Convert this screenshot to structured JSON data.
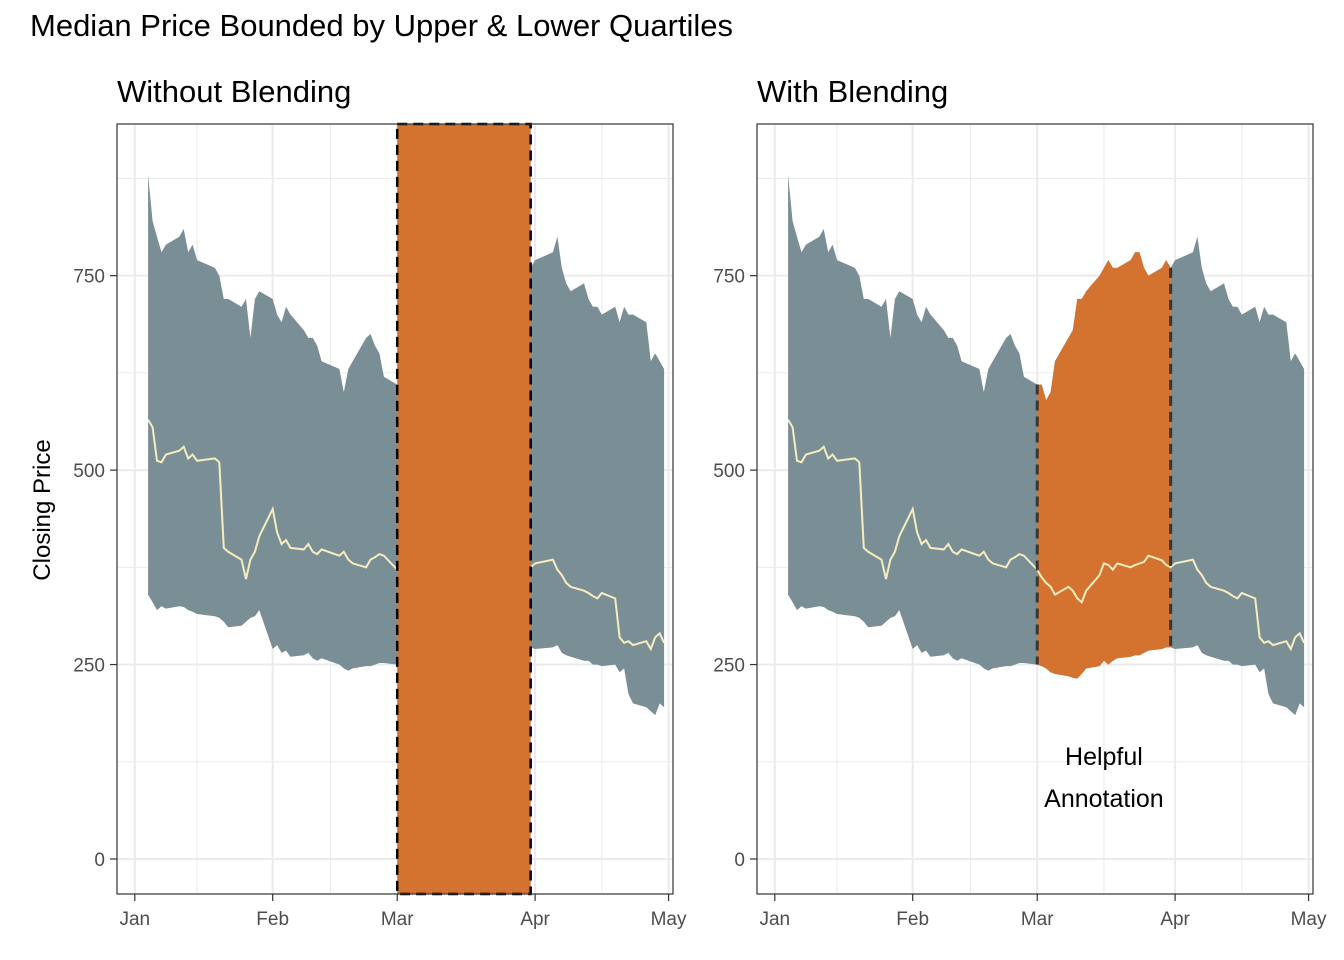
{
  "title": "Median Price Bounded by Upper & Lower Quartiles",
  "colors": {
    "band": "#7a8e95",
    "highlight": "#d4722f",
    "median": "#f7ecc0",
    "grid": "#ebebeb",
    "frame": "#333333"
  },
  "chart_data": [
    {
      "type": "area",
      "title": "Without Blending",
      "ylabel": "Closing Price",
      "xlabel": "",
      "x_ticks": [
        "Jan",
        "Feb",
        "Mar",
        "Apr",
        "May"
      ],
      "y_ticks": [
        "0",
        "250",
        "500",
        "750"
      ],
      "ylim": [
        -45,
        945
      ],
      "xlim": [
        "2020-12-28",
        "2021-05-02"
      ],
      "grid": true,
      "legend": "none",
      "highlight": {
        "x_start": "2021-03-01",
        "x_end": "2021-03-31",
        "style": "opaque rectangle spanning full panel height, dashed borders"
      },
      "annotation": {
        "lines": [
          "Helpful",
          "Annotation"
        ],
        "x": "2021-03-16",
        "y": 90,
        "obscured": true
      },
      "series": [
        {
          "name": "",
          "role": "upper quartile"
        },
        {
          "name": "",
          "role": "lower quartile"
        },
        {
          "name": "",
          "role": "median"
        }
      ]
    },
    {
      "type": "area",
      "title": "With Blending",
      "ylabel": "",
      "xlabel": "",
      "x_ticks": [
        "Jan",
        "Feb",
        "Mar",
        "Apr",
        "May"
      ],
      "y_ticks": [
        "0",
        "250",
        "500",
        "750"
      ],
      "ylim": [
        -45,
        945
      ],
      "xlim": [
        "2020-12-28",
        "2021-05-02"
      ],
      "grid": true,
      "legend": "none",
      "highlight": {
        "x_start": "2021-03-01",
        "x_end": "2021-03-31",
        "style": "band recoloured between the dashed lines"
      },
      "annotation": {
        "lines": [
          "Helpful",
          "Annotation"
        ],
        "x": "2021-03-16",
        "y": 90,
        "obscured": false
      }
    }
  ],
  "series_data": {
    "dates": [
      "2021-01-04",
      "2021-01-05",
      "2021-01-06",
      "2021-01-07",
      "2021-01-08",
      "2021-01-11",
      "2021-01-12",
      "2021-01-13",
      "2021-01-14",
      "2021-01-15",
      "2021-01-19",
      "2021-01-20",
      "2021-01-21",
      "2021-01-22",
      "2021-01-25",
      "2021-01-26",
      "2021-01-27",
      "2021-01-28",
      "2021-01-29",
      "2021-02-01",
      "2021-02-02",
      "2021-02-03",
      "2021-02-04",
      "2021-02-05",
      "2021-02-08",
      "2021-02-09",
      "2021-02-10",
      "2021-02-11",
      "2021-02-12",
      "2021-02-16",
      "2021-02-17",
      "2021-02-18",
      "2021-02-19",
      "2021-02-22",
      "2021-02-23",
      "2021-02-24",
      "2021-02-25",
      "2021-02-26",
      "2021-03-01",
      "2021-03-02",
      "2021-03-03",
      "2021-03-04",
      "2021-03-05",
      "2021-03-08",
      "2021-03-09",
      "2021-03-10",
      "2021-03-11",
      "2021-03-12",
      "2021-03-15",
      "2021-03-16",
      "2021-03-17",
      "2021-03-18",
      "2021-03-19",
      "2021-03-22",
      "2021-03-23",
      "2021-03-24",
      "2021-03-25",
      "2021-03-26",
      "2021-03-29",
      "2021-03-30",
      "2021-03-31",
      "2021-04-01",
      "2021-04-05",
      "2021-04-06",
      "2021-04-07",
      "2021-04-08",
      "2021-04-09",
      "2021-04-12",
      "2021-04-13",
      "2021-04-14",
      "2021-04-15",
      "2021-04-16",
      "2021-04-19",
      "2021-04-20",
      "2021-04-21",
      "2021-04-22",
      "2021-04-23",
      "2021-04-26",
      "2021-04-27",
      "2021-04-28",
      "2021-04-29",
      "2021-04-30"
    ],
    "upper": [
      880,
      820,
      800,
      780,
      790,
      800,
      810,
      780,
      790,
      770,
      760,
      750,
      720,
      720,
      710,
      720,
      670,
      720,
      730,
      720,
      700,
      690,
      710,
      700,
      680,
      670,
      670,
      660,
      640,
      630,
      600,
      630,
      640,
      670,
      675,
      660,
      650,
      620,
      610,
      610,
      590,
      600,
      640,
      670,
      680,
      720,
      720,
      730,
      750,
      760,
      770,
      760,
      760,
      770,
      780,
      780,
      760,
      750,
      760,
      770,
      760,
      770,
      780,
      800,
      760,
      740,
      730,
      740,
      720,
      710,
      710,
      700,
      710,
      690,
      710,
      700,
      700,
      690,
      640,
      650,
      640,
      630
    ],
    "lower": [
      340,
      330,
      320,
      325,
      322,
      325,
      324,
      320,
      318,
      315,
      312,
      310,
      305,
      298,
      300,
      305,
      310,
      312,
      320,
      270,
      275,
      265,
      268,
      260,
      262,
      265,
      258,
      255,
      258,
      250,
      245,
      242,
      245,
      248,
      248,
      250,
      252,
      252,
      250,
      248,
      245,
      240,
      238,
      235,
      233,
      232,
      238,
      245,
      248,
      255,
      250,
      255,
      258,
      260,
      262,
      262,
      265,
      268,
      270,
      272,
      272,
      270,
      272,
      275,
      265,
      262,
      260,
      255,
      255,
      250,
      250,
      248,
      250,
      240,
      245,
      212,
      200,
      195,
      190,
      185,
      200,
      195
    ],
    "median": [
      565,
      555,
      512,
      510,
      520,
      525,
      530,
      515,
      520,
      512,
      515,
      510,
      400,
      395,
      385,
      360,
      385,
      395,
      415,
      450,
      420,
      405,
      410,
      400,
      398,
      405,
      395,
      392,
      398,
      390,
      395,
      385,
      380,
      375,
      385,
      388,
      392,
      390,
      372,
      362,
      355,
      350,
      340,
      350,
      345,
      335,
      330,
      345,
      365,
      380,
      378,
      372,
      380,
      375,
      378,
      380,
      382,
      390,
      384,
      378,
      375,
      380,
      385,
      372,
      365,
      355,
      350,
      345,
      342,
      338,
      335,
      342,
      335,
      285,
      278,
      280,
      275,
      280,
      270,
      285,
      290,
      278
    ]
  }
}
